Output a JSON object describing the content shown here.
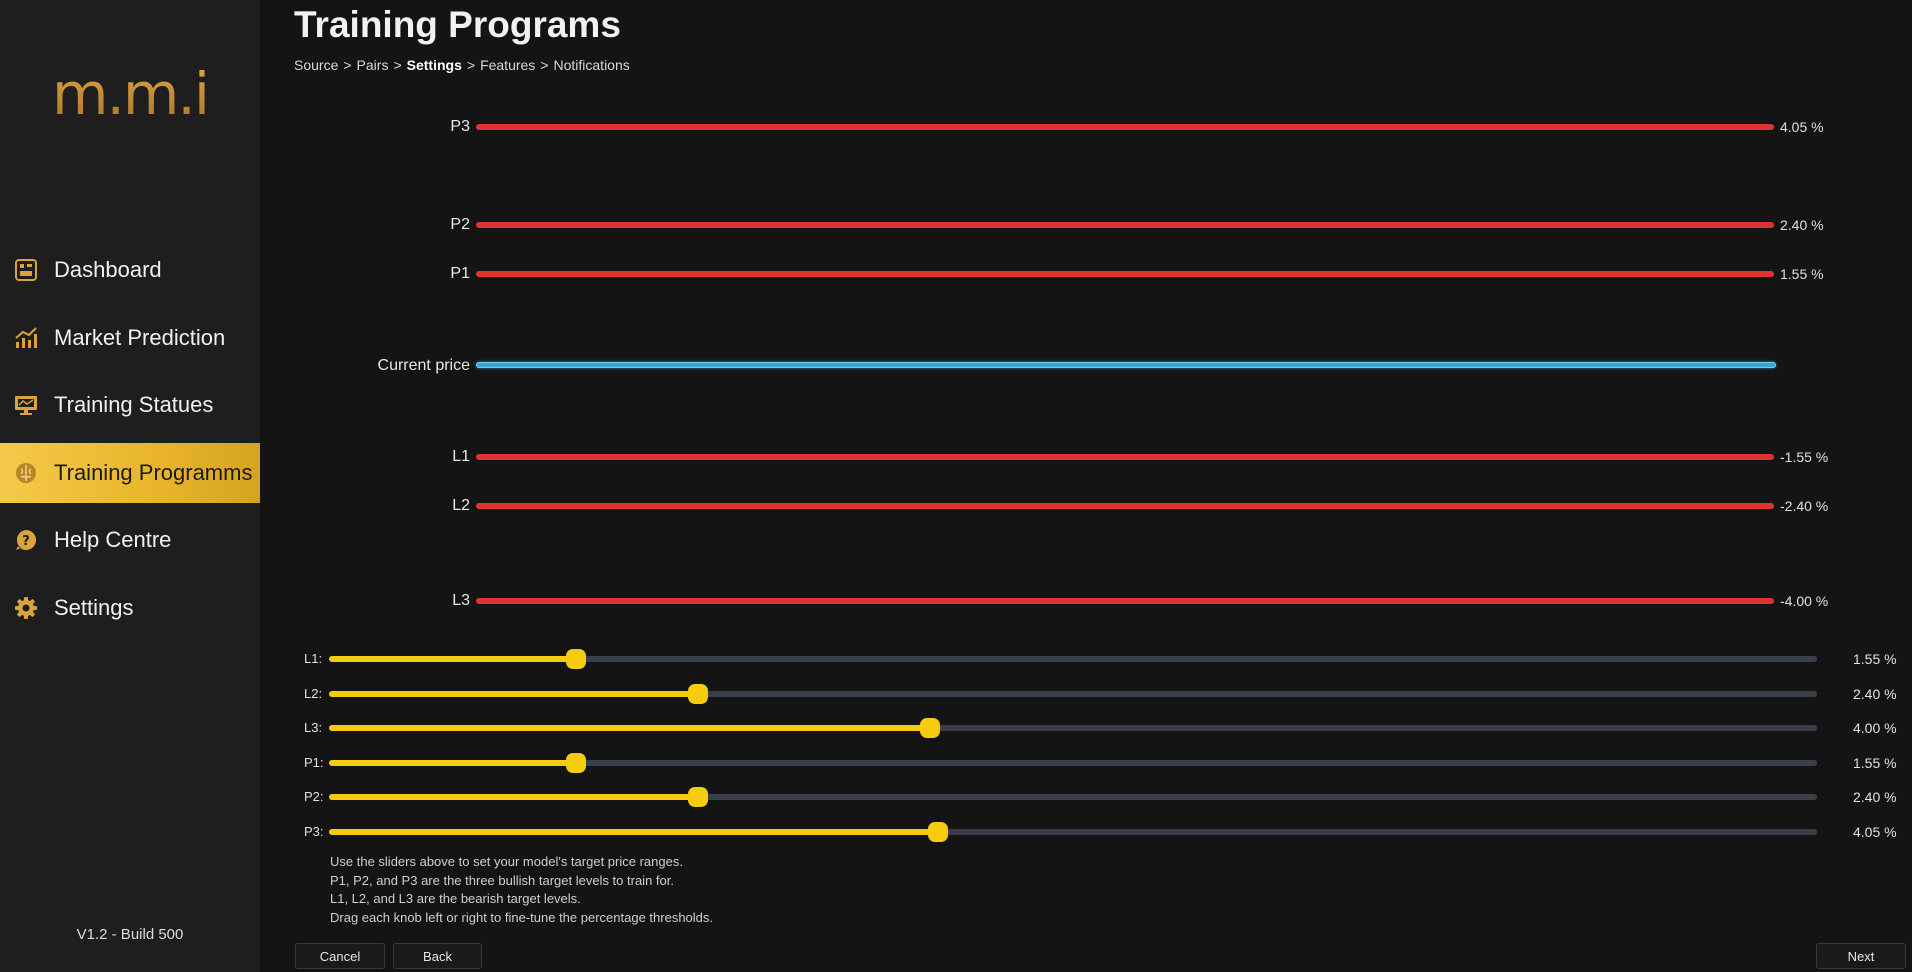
{
  "app": {
    "logo_text": "m.m.i",
    "version": "V1.2 - Build 500"
  },
  "sidebar": {
    "items": [
      {
        "label": "Dashboard",
        "icon": "dashboard-icon",
        "active": false
      },
      {
        "label": "Market Prediction",
        "icon": "chart-icon",
        "active": false
      },
      {
        "label": "Training Statues",
        "icon": "monitor-icon",
        "active": false
      },
      {
        "label": "Training Programms",
        "icon": "brain-icon",
        "active": true
      },
      {
        "label": "Help Centre",
        "icon": "help-icon",
        "active": false
      },
      {
        "label": "Settings",
        "icon": "gear-icon",
        "active": false
      }
    ]
  },
  "header": {
    "title": "Training Programs",
    "breadcrumb": [
      "Source",
      "Pairs",
      "Settings",
      "Features",
      "Notifications"
    ],
    "breadcrumb_current": "Settings",
    "separator": ">"
  },
  "levels": [
    {
      "label": "P3",
      "value": "4.05 %"
    },
    {
      "label": "P2",
      "value": "2.40 %"
    },
    {
      "label": "P1",
      "value": "1.55 %"
    },
    {
      "label": "Current price",
      "value": ""
    },
    {
      "label": "L1",
      "value": "-1.55 %"
    },
    {
      "label": "L2",
      "value": "-2.40 %"
    },
    {
      "label": "L3",
      "value": "-4.00 %"
    }
  ],
  "sliders": [
    {
      "label": "L1:",
      "value": "1.55 %",
      "fraction": 0.166
    },
    {
      "label": "L2:",
      "value": "2.40 %",
      "fraction": 0.248
    },
    {
      "label": "L3:",
      "value": "4.00 %",
      "fraction": 0.404
    },
    {
      "label": "P1:",
      "value": "1.55 %",
      "fraction": 0.166
    },
    {
      "label": "P2:",
      "value": "2.40 %",
      "fraction": 0.248
    },
    {
      "label": "P3:",
      "value": "4.05 %",
      "fraction": 0.409
    }
  ],
  "help_text": [
    "Use the sliders above to set your model's target price ranges.",
    "P1, P2, and P3 are the three bullish target levels to train for.",
    "L1, L2, and L3 are the bearish target levels.",
    "Drag each knob left or right to fine-tune the percentage thresholds."
  ],
  "buttons": {
    "cancel": "Cancel",
    "back": "Back",
    "next": "Next"
  },
  "colors": {
    "accent": "#f5c94a",
    "level_line": "#e03434",
    "current_price_line": "#3aa6d8",
    "slider_fill": "#f5cc10",
    "slider_track": "#3a3f4a"
  }
}
